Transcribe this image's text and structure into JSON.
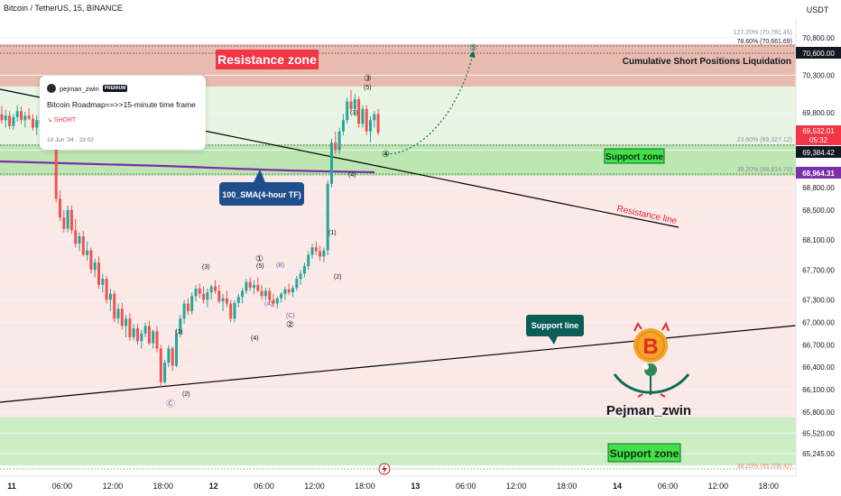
{
  "header": {
    "symbol_line": "Bitcoin / TetherUS, 15, BINANCE",
    "currency": "USDT"
  },
  "idea_card": {
    "author": "pejman_zwin",
    "badge": "PREMIUM",
    "title": "Bitcoin Roadmap==>>15-minute time frame",
    "direction": "↘ SHORT",
    "date": "10 Jun '24 · 23:02"
  },
  "colors": {
    "up": "#26a69a",
    "down": "#ef5350",
    "resistance_zone": "#e8b7ab",
    "support_zone": "#b8e6ad",
    "sma": "#7b2fa8",
    "projection": "#0b6e4f",
    "resistance_label_bg": "#f23645",
    "support_label_bg": "#44e04a",
    "callout_bg": "#1e4f8c",
    "support_line_callout_bg": "#0b5e57"
  },
  "chart_data": {
    "type": "candlestick",
    "symbol": "BTCUSDT",
    "timeframe": "15",
    "ylim": [
      64945,
      71040
    ],
    "y_ticks": [
      "70,800.00",
      "70,300.00",
      "69,800.00",
      "69,300.00",
      "68,800.00",
      "68,500.00",
      "68,100.00",
      "67,700.00",
      "67,300.00",
      "67,000.00",
      "66,700.00",
      "66,400.00",
      "66,100.00",
      "65,800.00",
      "65,520.00",
      "65,245.00"
    ],
    "x_ticks": [
      "11",
      "06:00",
      "12:00",
      "18:00",
      "12",
      "06:00",
      "12:00",
      "18:00",
      "13",
      "06:00",
      "12:00",
      "18:00",
      "14",
      "06:00",
      "12:00",
      "18:00"
    ],
    "price_badges": {
      "p70600": "70,600.00",
      "last": "69,532.01",
      "countdown": "05:32",
      "p69384": "69,384.42",
      "sma_value": "68,964.31"
    },
    "fib_levels": [
      {
        "label": "127.20% (70,781.45)",
        "price": 70781.45
      },
      {
        "label": "78.60% (70,661.69)",
        "price": 70661.69
      },
      {
        "label": "23.60% (69,327.12)",
        "price": 69327.12
      },
      {
        "label": "38.20% (68,914.70)",
        "price": 68914.7
      },
      {
        "label": "38.20% (65,208.42)",
        "price": 65208.42
      }
    ],
    "zones": [
      {
        "name": "Resistance zone",
        "from": 70080,
        "to": 70880
      },
      {
        "name": "Support zone",
        "from": 69000,
        "to": 69300
      },
      {
        "name": "Support zone",
        "from": 65000,
        "to": 65720
      }
    ],
    "annotations": {
      "resistance_zone": "Resistance zone",
      "support_zone_upper": "Support zone",
      "support_zone_lower": "Support zone",
      "cumulative": "Cumulative Short Positions Liquidation",
      "resistance_line": "Resistance line",
      "support_line": "Support line",
      "sma_callout": "100_SMA(4-hour TF)",
      "brand": "Pejman_zwin"
    },
    "wave_labels": [
      "(1)",
      "(2)",
      "(3)",
      "(4)",
      "(5)",
      "(A)",
      "(B)",
      "(C)",
      "1",
      "2",
      "3",
      "4",
      "5",
      "C",
      "(3)",
      "(5)",
      "(4)"
    ],
    "wave_labels_circled": [
      "③",
      "⑤",
      "④",
      "⑤",
      "①",
      "②",
      "Ⓒ"
    ],
    "candles": [
      [
        69780,
        69890,
        69650,
        69700
      ],
      [
        69700,
        69840,
        69600,
        69760
      ],
      [
        69760,
        69820,
        69580,
        69620
      ],
      [
        69620,
        69780,
        69570,
        69740
      ],
      [
        69740,
        69900,
        69680,
        69820
      ],
      [
        69820,
        69880,
        69650,
        69700
      ],
      [
        69700,
        69810,
        69600,
        69760
      ],
      [
        69760,
        69860,
        69700,
        69720
      ],
      [
        69720,
        69780,
        69560,
        69600
      ],
      [
        69600,
        69760,
        69500,
        69700
      ],
      [
        69700,
        69820,
        69620,
        69650
      ],
      [
        69650,
        69740,
        69560,
        69680
      ],
      [
        69680,
        69760,
        69600,
        69620
      ],
      [
        69620,
        69700,
        69300,
        69330
      ],
      [
        69330,
        69380,
        68600,
        68650
      ],
      [
        68650,
        68760,
        68350,
        68400
      ],
      [
        68400,
        68500,
        68200,
        68250
      ],
      [
        68250,
        68560,
        68200,
        68500
      ],
      [
        68500,
        68560,
        68180,
        68230
      ],
      [
        68230,
        68380,
        68000,
        68050
      ],
      [
        68050,
        68200,
        67950,
        68150
      ],
      [
        68150,
        68220,
        67880,
        67900
      ],
      [
        67900,
        68080,
        67820,
        67960
      ],
      [
        67960,
        68000,
        67650,
        67700
      ],
      [
        67700,
        67850,
        67600,
        67800
      ],
      [
        67800,
        67880,
        67450,
        67500
      ],
      [
        67500,
        67650,
        67400,
        67580
      ],
      [
        67580,
        67620,
        67250,
        67300
      ],
      [
        67300,
        67450,
        67150,
        67380
      ],
      [
        67380,
        67420,
        67000,
        67050
      ],
      [
        67050,
        67250,
        66980,
        67180
      ],
      [
        67180,
        67260,
        66900,
        66950
      ],
      [
        66950,
        67100,
        66800,
        67050
      ],
      [
        67050,
        67120,
        66750,
        66800
      ],
      [
        66800,
        66980,
        66760,
        66920
      ],
      [
        66920,
        66980,
        66700,
        66750
      ],
      [
        66750,
        66900,
        66650,
        66850
      ],
      [
        66850,
        67000,
        66800,
        66950
      ],
      [
        66950,
        67020,
        66700,
        66720
      ],
      [
        66720,
        66900,
        66650,
        66880
      ],
      [
        66880,
        66950,
        66600,
        66650
      ],
      [
        66650,
        66700,
        66130,
        66200
      ],
      [
        66200,
        66500,
        66180,
        66460
      ],
      [
        66460,
        66700,
        66400,
        66650
      ],
      [
        66650,
        66680,
        66350,
        66420
      ],
      [
        66420,
        66900,
        66400,
        66850
      ],
      [
        66850,
        67100,
        66800,
        67050
      ],
      [
        67050,
        67300,
        66980,
        67250
      ],
      [
        67250,
        67320,
        67100,
        67150
      ],
      [
        67150,
        67400,
        67100,
        67350
      ],
      [
        67350,
        67500,
        67280,
        67450
      ],
      [
        67450,
        67520,
        67320,
        67380
      ],
      [
        67380,
        67480,
        67250,
        67300
      ],
      [
        67300,
        67450,
        67200,
        67400
      ],
      [
        67400,
        67500,
        67300,
        67480
      ],
      [
        67480,
        67560,
        67380,
        67420
      ],
      [
        67420,
        67500,
        67250,
        67280
      ],
      [
        67280,
        67380,
        67150,
        67320
      ],
      [
        67320,
        67420,
        67200,
        67250
      ],
      [
        67250,
        67300,
        67000,
        67050
      ],
      [
        67050,
        67300,
        67000,
        67260
      ],
      [
        67260,
        67380,
        67200,
        67340
      ],
      [
        67340,
        67460,
        67250,
        67420
      ],
      [
        67420,
        67580,
        67380,
        67540
      ],
      [
        67540,
        67600,
        67420,
        67460
      ],
      [
        67460,
        67560,
        67380,
        67500
      ],
      [
        67500,
        67600,
        67400,
        67420
      ],
      [
        67420,
        67500,
        67300,
        67350
      ],
      [
        67350,
        67460,
        67300,
        67420
      ],
      [
        67420,
        67460,
        67250,
        67300
      ],
      [
        67300,
        67380,
        67200,
        67250
      ],
      [
        67250,
        67350,
        67180,
        67320
      ],
      [
        67320,
        67400,
        67260,
        67380
      ],
      [
        67380,
        67480,
        67300,
        67440
      ],
      [
        67440,
        67520,
        67360,
        67400
      ],
      [
        67400,
        67500,
        67340,
        67460
      ],
      [
        67460,
        67620,
        67420,
        67580
      ],
      [
        67580,
        67700,
        67500,
        67650
      ],
      [
        67650,
        67800,
        67600,
        67750
      ],
      [
        67750,
        67950,
        67700,
        67900
      ],
      [
        67900,
        68050,
        67850,
        68000
      ],
      [
        68000,
        68080,
        67900,
        67950
      ],
      [
        67950,
        68020,
        67820,
        67880
      ],
      [
        67880,
        68000,
        67800,
        67960
      ],
      [
        67960,
        68900,
        67900,
        68850
      ],
      [
        68850,
        69450,
        68800,
        69400
      ],
      [
        69400,
        69550,
        69250,
        69300
      ],
      [
        69300,
        69600,
        69250,
        69550
      ],
      [
        69550,
        69780,
        69500,
        69700
      ],
      [
        69700,
        70000,
        69650,
        69950
      ],
      [
        69950,
        70100,
        69800,
        69850
      ],
      [
        69850,
        70050,
        69750,
        69980
      ],
      [
        69980,
        70020,
        69600,
        69650
      ],
      [
        69650,
        69900,
        69600,
        69850
      ],
      [
        69850,
        69900,
        69500,
        69550
      ],
      [
        69550,
        69750,
        69400,
        69700
      ],
      [
        69700,
        69820,
        69600,
        69780
      ],
      [
        69780,
        69850,
        69500,
        69532
      ]
    ]
  }
}
